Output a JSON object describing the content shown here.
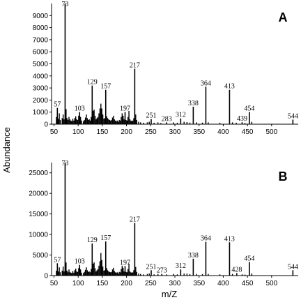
{
  "figure": {
    "ylabel": "Abundance",
    "xlabel": "m/Z"
  },
  "chart_data": [
    {
      "type": "bar",
      "panel_label": "A",
      "xlim": [
        45,
        555
      ],
      "ylim": [
        0,
        10000
      ],
      "x_ticks": [
        50,
        100,
        150,
        200,
        250,
        300,
        350,
        400,
        450,
        500
      ],
      "y_ticks": [
        0,
        1000,
        2000,
        3000,
        4000,
        5000,
        6000,
        7000,
        8000,
        9000
      ],
      "labeled_peaks": [
        {
          "x": 57,
          "y": 1350,
          "label": "57"
        },
        {
          "x": 73,
          "y": 10000,
          "label": "73"
        },
        {
          "x": 103,
          "y": 1000,
          "label": "103"
        },
        {
          "x": 129,
          "y": 3200,
          "label": "129"
        },
        {
          "x": 157,
          "y": 2850,
          "label": "157"
        },
        {
          "x": 197,
          "y": 1000,
          "label": "197"
        },
        {
          "x": 217,
          "y": 4600,
          "label": "217"
        },
        {
          "x": 251,
          "y": 420,
          "label": "251"
        },
        {
          "x": 283,
          "y": 150,
          "label": "283"
        },
        {
          "x": 312,
          "y": 480,
          "label": "312"
        },
        {
          "x": 338,
          "y": 1450,
          "label": "338"
        },
        {
          "x": 364,
          "y": 3100,
          "label": "364"
        },
        {
          "x": 413,
          "y": 2850,
          "label": "413"
        },
        {
          "x": 439,
          "y": 160,
          "label": "439"
        },
        {
          "x": 454,
          "y": 1000,
          "label": "454"
        },
        {
          "x": 544,
          "y": 380,
          "label": "544"
        }
      ],
      "minor_peaks": [
        {
          "x": 55,
          "y": 600
        },
        {
          "x": 59,
          "y": 450
        },
        {
          "x": 61,
          "y": 900
        },
        {
          "x": 63,
          "y": 350
        },
        {
          "x": 67,
          "y": 500
        },
        {
          "x": 69,
          "y": 800
        },
        {
          "x": 71,
          "y": 400
        },
        {
          "x": 74,
          "y": 1150
        },
        {
          "x": 75,
          "y": 1250
        },
        {
          "x": 77,
          "y": 500
        },
        {
          "x": 79,
          "y": 350
        },
        {
          "x": 81,
          "y": 600
        },
        {
          "x": 83,
          "y": 400
        },
        {
          "x": 85,
          "y": 300
        },
        {
          "x": 87,
          "y": 250
        },
        {
          "x": 89,
          "y": 450
        },
        {
          "x": 91,
          "y": 300
        },
        {
          "x": 93,
          "y": 500
        },
        {
          "x": 95,
          "y": 650
        },
        {
          "x": 97,
          "y": 400
        },
        {
          "x": 99,
          "y": 350
        },
        {
          "x": 101,
          "y": 700
        },
        {
          "x": 105,
          "y": 600
        },
        {
          "x": 107,
          "y": 300
        },
        {
          "x": 111,
          "y": 250
        },
        {
          "x": 113,
          "y": 350
        },
        {
          "x": 115,
          "y": 550
        },
        {
          "x": 117,
          "y": 800
        },
        {
          "x": 119,
          "y": 500
        },
        {
          "x": 121,
          "y": 350
        },
        {
          "x": 123,
          "y": 400
        },
        {
          "x": 125,
          "y": 300
        },
        {
          "x": 127,
          "y": 600
        },
        {
          "x": 131,
          "y": 1100
        },
        {
          "x": 133,
          "y": 1200
        },
        {
          "x": 135,
          "y": 700
        },
        {
          "x": 137,
          "y": 400
        },
        {
          "x": 139,
          "y": 500
        },
        {
          "x": 141,
          "y": 600
        },
        {
          "x": 143,
          "y": 900
        },
        {
          "x": 145,
          "y": 1300
        },
        {
          "x": 147,
          "y": 1700
        },
        {
          "x": 149,
          "y": 1300
        },
        {
          "x": 151,
          "y": 800
        },
        {
          "x": 153,
          "y": 450
        },
        {
          "x": 155,
          "y": 500
        },
        {
          "x": 159,
          "y": 650
        },
        {
          "x": 161,
          "y": 500
        },
        {
          "x": 163,
          "y": 400
        },
        {
          "x": 165,
          "y": 350
        },
        {
          "x": 167,
          "y": 300
        },
        {
          "x": 169,
          "y": 350
        },
        {
          "x": 171,
          "y": 550
        },
        {
          "x": 173,
          "y": 700
        },
        {
          "x": 175,
          "y": 400
        },
        {
          "x": 177,
          "y": 300
        },
        {
          "x": 179,
          "y": 250
        },
        {
          "x": 181,
          "y": 300
        },
        {
          "x": 183,
          "y": 200
        },
        {
          "x": 185,
          "y": 350
        },
        {
          "x": 187,
          "y": 300
        },
        {
          "x": 189,
          "y": 600
        },
        {
          "x": 191,
          "y": 900
        },
        {
          "x": 193,
          "y": 700
        },
        {
          "x": 195,
          "y": 400
        },
        {
          "x": 199,
          "y": 350
        },
        {
          "x": 201,
          "y": 300
        },
        {
          "x": 203,
          "y": 600
        },
        {
          "x": 205,
          "y": 1100
        },
        {
          "x": 207,
          "y": 400
        },
        {
          "x": 209,
          "y": 300
        },
        {
          "x": 211,
          "y": 250
        },
        {
          "x": 213,
          "y": 300
        },
        {
          "x": 215,
          "y": 500
        },
        {
          "x": 219,
          "y": 800
        },
        {
          "x": 221,
          "y": 350
        },
        {
          "x": 225,
          "y": 200
        },
        {
          "x": 229,
          "y": 150
        },
        {
          "x": 235,
          "y": 120
        },
        {
          "x": 243,
          "y": 150
        },
        {
          "x": 247,
          "y": 200
        },
        {
          "x": 257,
          "y": 120
        },
        {
          "x": 265,
          "y": 150
        },
        {
          "x": 271,
          "y": 100
        },
        {
          "x": 297,
          "y": 150
        },
        {
          "x": 305,
          "y": 120
        },
        {
          "x": 319,
          "y": 200
        },
        {
          "x": 325,
          "y": 180
        },
        {
          "x": 331,
          "y": 130
        },
        {
          "x": 345,
          "y": 150
        },
        {
          "x": 357,
          "y": 130
        },
        {
          "x": 369,
          "y": 150
        },
        {
          "x": 393,
          "y": 120
        },
        {
          "x": 419,
          "y": 150
        },
        {
          "x": 427,
          "y": 120
        },
        {
          "x": 445,
          "y": 100
        },
        {
          "x": 459,
          "y": 200
        }
      ]
    },
    {
      "type": "bar",
      "panel_label": "B",
      "xlim": [
        45,
        555
      ],
      "ylim": [
        0,
        27500
      ],
      "x_ticks": [
        50,
        100,
        150,
        200,
        250,
        300,
        350,
        400,
        450,
        500
      ],
      "y_ticks": [
        0,
        5000,
        10000,
        15000,
        20000,
        25000
      ],
      "labeled_peaks": [
        {
          "x": 57,
          "y": 3000,
          "label": "57"
        },
        {
          "x": 73,
          "y": 27500,
          "label": "73"
        },
        {
          "x": 103,
          "y": 2600,
          "label": "103"
        },
        {
          "x": 129,
          "y": 7800,
          "label": "129"
        },
        {
          "x": 157,
          "y": 8300,
          "label": "157"
        },
        {
          "x": 197,
          "y": 2300,
          "label": "197"
        },
        {
          "x": 217,
          "y": 12800,
          "label": "217"
        },
        {
          "x": 251,
          "y": 1300,
          "label": "251"
        },
        {
          "x": 273,
          "y": 400,
          "label": "273"
        },
        {
          "x": 312,
          "y": 1500,
          "label": "312"
        },
        {
          "x": 338,
          "y": 4100,
          "label": "338"
        },
        {
          "x": 364,
          "y": 8200,
          "label": "364"
        },
        {
          "x": 413,
          "y": 8100,
          "label": "413"
        },
        {
          "x": 428,
          "y": 600,
          "label": "428"
        },
        {
          "x": 454,
          "y": 3300,
          "label": "454"
        },
        {
          "x": 544,
          "y": 1300,
          "label": "544"
        }
      ],
      "minor_peaks": [
        {
          "x": 55,
          "y": 1200
        },
        {
          "x": 59,
          "y": 1000
        },
        {
          "x": 61,
          "y": 2000
        },
        {
          "x": 63,
          "y": 800
        },
        {
          "x": 67,
          "y": 1200
        },
        {
          "x": 69,
          "y": 2200
        },
        {
          "x": 71,
          "y": 1000
        },
        {
          "x": 74,
          "y": 2800
        },
        {
          "x": 75,
          "y": 3200
        },
        {
          "x": 77,
          "y": 1200
        },
        {
          "x": 79,
          "y": 800
        },
        {
          "x": 81,
          "y": 1500
        },
        {
          "x": 83,
          "y": 900
        },
        {
          "x": 85,
          "y": 700
        },
        {
          "x": 87,
          "y": 600
        },
        {
          "x": 89,
          "y": 1100
        },
        {
          "x": 91,
          "y": 700
        },
        {
          "x": 93,
          "y": 1300
        },
        {
          "x": 95,
          "y": 1700
        },
        {
          "x": 97,
          "y": 1000
        },
        {
          "x": 99,
          "y": 900
        },
        {
          "x": 101,
          "y": 1800
        },
        {
          "x": 105,
          "y": 1500
        },
        {
          "x": 107,
          "y": 700
        },
        {
          "x": 111,
          "y": 600
        },
        {
          "x": 113,
          "y": 900
        },
        {
          "x": 115,
          "y": 1400
        },
        {
          "x": 117,
          "y": 2000
        },
        {
          "x": 119,
          "y": 1300
        },
        {
          "x": 121,
          "y": 900
        },
        {
          "x": 123,
          "y": 1000
        },
        {
          "x": 125,
          "y": 800
        },
        {
          "x": 127,
          "y": 1600
        },
        {
          "x": 131,
          "y": 2900
        },
        {
          "x": 133,
          "y": 3200
        },
        {
          "x": 135,
          "y": 1800
        },
        {
          "x": 137,
          "y": 1000
        },
        {
          "x": 139,
          "y": 1300
        },
        {
          "x": 141,
          "y": 1600
        },
        {
          "x": 143,
          "y": 2400
        },
        {
          "x": 145,
          "y": 3500
        },
        {
          "x": 147,
          "y": 5500
        },
        {
          "x": 149,
          "y": 3800
        },
        {
          "x": 151,
          "y": 2200
        },
        {
          "x": 153,
          "y": 1200
        },
        {
          "x": 155,
          "y": 1300
        },
        {
          "x": 159,
          "y": 1800
        },
        {
          "x": 161,
          "y": 1300
        },
        {
          "x": 163,
          "y": 1000
        },
        {
          "x": 165,
          "y": 900
        },
        {
          "x": 167,
          "y": 800
        },
        {
          "x": 169,
          "y": 900
        },
        {
          "x": 171,
          "y": 1500
        },
        {
          "x": 173,
          "y": 1900
        },
        {
          "x": 175,
          "y": 1100
        },
        {
          "x": 177,
          "y": 800
        },
        {
          "x": 179,
          "y": 700
        },
        {
          "x": 181,
          "y": 800
        },
        {
          "x": 183,
          "y": 500
        },
        {
          "x": 185,
          "y": 900
        },
        {
          "x": 187,
          "y": 800
        },
        {
          "x": 189,
          "y": 1600
        },
        {
          "x": 191,
          "y": 2400
        },
        {
          "x": 193,
          "y": 1900
        },
        {
          "x": 195,
          "y": 1000
        },
        {
          "x": 199,
          "y": 900
        },
        {
          "x": 201,
          "y": 800
        },
        {
          "x": 203,
          "y": 1600
        },
        {
          "x": 205,
          "y": 2900
        },
        {
          "x": 207,
          "y": 1000
        },
        {
          "x": 209,
          "y": 800
        },
        {
          "x": 211,
          "y": 700
        },
        {
          "x": 213,
          "y": 800
        },
        {
          "x": 215,
          "y": 1300
        },
        {
          "x": 219,
          "y": 2100
        },
        {
          "x": 221,
          "y": 900
        },
        {
          "x": 225,
          "y": 500
        },
        {
          "x": 229,
          "y": 400
        },
        {
          "x": 235,
          "y": 300
        },
        {
          "x": 243,
          "y": 400
        },
        {
          "x": 247,
          "y": 500
        },
        {
          "x": 257,
          "y": 300
        },
        {
          "x": 265,
          "y": 400
        },
        {
          "x": 283,
          "y": 300
        },
        {
          "x": 297,
          "y": 400
        },
        {
          "x": 305,
          "y": 300
        },
        {
          "x": 319,
          "y": 500
        },
        {
          "x": 325,
          "y": 500
        },
        {
          "x": 331,
          "y": 350
        },
        {
          "x": 345,
          "y": 400
        },
        {
          "x": 357,
          "y": 350
        },
        {
          "x": 369,
          "y": 400
        },
        {
          "x": 393,
          "y": 300
        },
        {
          "x": 419,
          "y": 400
        },
        {
          "x": 439,
          "y": 300
        },
        {
          "x": 445,
          "y": 250
        },
        {
          "x": 459,
          "y": 500
        }
      ]
    }
  ]
}
